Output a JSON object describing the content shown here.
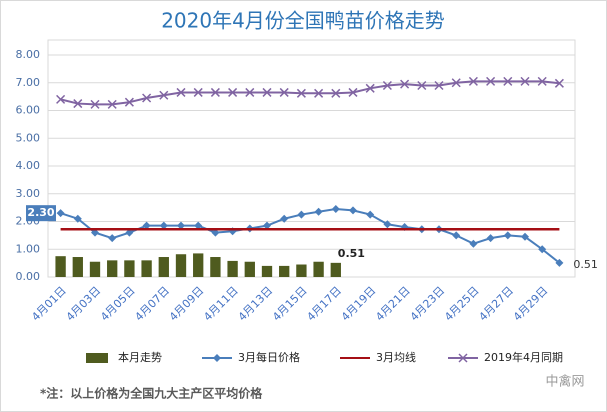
{
  "chart_data": {
    "type": "combo",
    "title": "2020年4月份全国鸭苗价格走势",
    "footnote": "*注：以上价格为全国九大主产区平均价格",
    "watermark": "中禽网",
    "categories": [
      "4月01日",
      null,
      "4月03日",
      null,
      "4月05日",
      null,
      "4月07日",
      null,
      "4月09日",
      null,
      "4月11日",
      null,
      "4月13日",
      null,
      "4月15日",
      null,
      "4月17日",
      null,
      "4月19日",
      null,
      "4月21日",
      null,
      "4月23日",
      null,
      "4月25日",
      null,
      "4月27日",
      null,
      "4月29日",
      null
    ],
    "ylim": [
      0,
      8
    ],
    "yticks": [
      {
        "value": 0,
        "label": "0.00"
      },
      {
        "value": 1,
        "label": "1.00"
      },
      {
        "value": 2,
        "label": "2.00"
      },
      {
        "value": 3,
        "label": "3.00"
      },
      {
        "value": 4,
        "label": "4.00"
      },
      {
        "value": 5,
        "label": "5.00"
      },
      {
        "value": 6,
        "label": "6.00"
      },
      {
        "value": 7,
        "label": "7.00"
      },
      {
        "value": 8,
        "label": "8.00"
      }
    ],
    "grid": true,
    "legend": "bottom",
    "series": [
      {
        "name": "本月走势",
        "kind": "bar",
        "color": "#4f5b1f",
        "values": [
          0.75,
          0.72,
          0.55,
          0.6,
          0.6,
          0.6,
          0.72,
          0.82,
          0.85,
          0.72,
          0.58,
          0.55,
          0.4,
          0.4,
          0.45,
          0.55,
          0.51,
          null,
          null,
          null,
          null,
          null,
          null,
          null,
          null,
          null,
          null,
          null,
          null,
          null
        ],
        "value_labels": [
          null,
          null,
          null,
          null,
          null,
          null,
          null,
          null,
          null,
          null,
          null,
          null,
          null,
          null,
          null,
          null,
          "0.51",
          null,
          null,
          null,
          null,
          null,
          null,
          null,
          null,
          null,
          null,
          null,
          null,
          null
        ]
      },
      {
        "name": "3月每日价格",
        "kind": "line",
        "marker": "diamond",
        "color": "#4a7ebb",
        "values": [
          2.3,
          2.1,
          1.6,
          1.4,
          1.6,
          1.85,
          1.85,
          1.85,
          1.85,
          1.6,
          1.65,
          1.75,
          1.85,
          2.1,
          2.25,
          2.35,
          2.45,
          2.4,
          2.25,
          1.9,
          1.8,
          1.72,
          1.72,
          1.5,
          1.2,
          1.4,
          1.5,
          1.45,
          1.0,
          0.51
        ],
        "value_labels": [
          "2.30",
          null,
          null,
          null,
          null,
          null,
          null,
          null,
          null,
          null,
          null,
          null,
          null,
          null,
          null,
          null,
          null,
          null,
          null,
          null,
          null,
          null,
          null,
          null,
          null,
          null,
          null,
          null,
          null,
          "0.51"
        ]
      },
      {
        "name": "3月均线",
        "kind": "line",
        "marker": "none",
        "color": "#a50f15",
        "values": [
          1.72,
          1.72,
          1.72,
          1.72,
          1.72,
          1.72,
          1.72,
          1.72,
          1.72,
          1.72,
          1.72,
          1.72,
          1.72,
          1.72,
          1.72,
          1.72,
          1.72,
          1.72,
          1.72,
          1.72,
          1.72,
          1.72,
          1.72,
          1.72,
          1.72,
          1.72,
          1.72,
          1.72,
          1.72,
          1.72
        ]
      },
      {
        "name": "2019年4月同期",
        "kind": "line",
        "marker": "x",
        "color": "#8064a2",
        "values": [
          6.4,
          6.25,
          6.22,
          6.22,
          6.3,
          6.45,
          6.55,
          6.65,
          6.65,
          6.65,
          6.65,
          6.65,
          6.65,
          6.65,
          6.62,
          6.62,
          6.62,
          6.65,
          6.8,
          6.9,
          6.95,
          6.9,
          6.9,
          7.0,
          7.05,
          7.05,
          7.05,
          7.05,
          7.05,
          6.98
        ]
      }
    ]
  }
}
